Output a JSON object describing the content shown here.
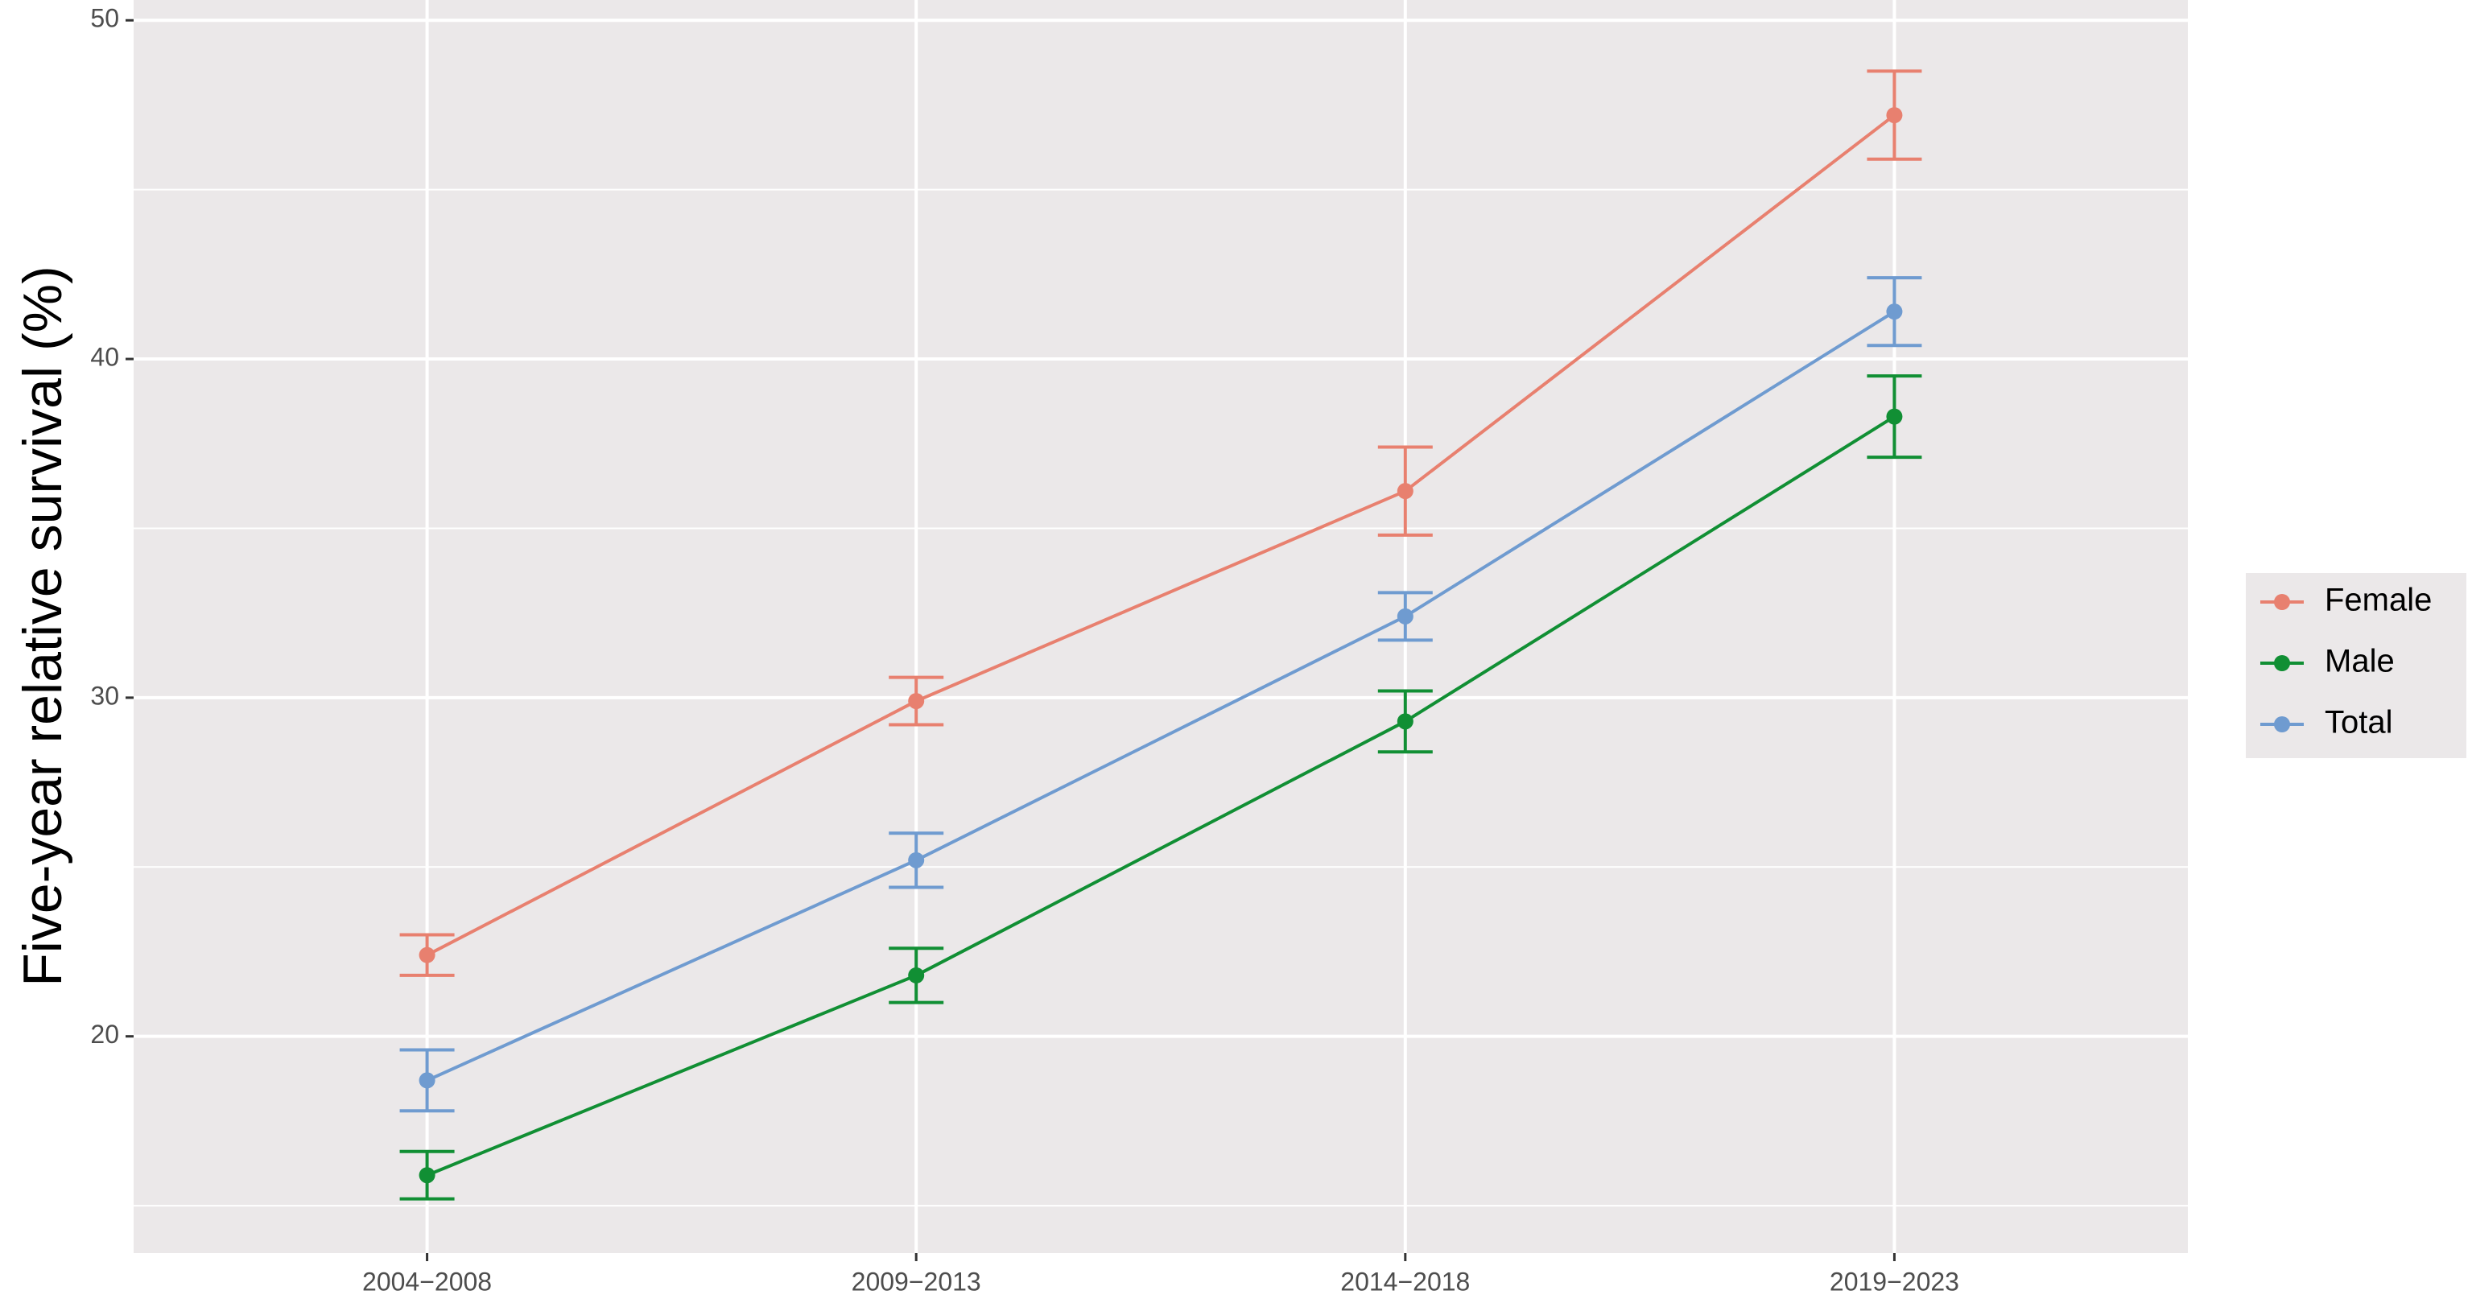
{
  "chart_data": {
    "type": "line",
    "ylabel": "Five-year relative survival (%)",
    "categories": [
      "2004−2008",
      "2009−2013",
      "2014−2018",
      "2019−2023"
    ],
    "series": [
      {
        "name": "Female",
        "color": "#e8806f",
        "values": [
          22.4,
          29.9,
          36.1,
          47.2
        ],
        "errors": [
          0.6,
          0.7,
          1.3,
          1.3
        ]
      },
      {
        "name": "Male",
        "color": "#118f34",
        "values": [
          15.9,
          21.8,
          29.3,
          38.3
        ],
        "errors": [
          0.7,
          0.8,
          0.9,
          1.2
        ]
      },
      {
        "name": "Total",
        "color": "#6f9bd0",
        "values": [
          18.7,
          25.2,
          32.4,
          41.4
        ],
        "errors": [
          0.9,
          0.8,
          0.7,
          1.0
        ]
      }
    ],
    "ylim": [
      13.6,
      50.6
    ],
    "yticks": [
      20,
      30,
      40,
      50
    ],
    "grid": true,
    "legend": "right"
  }
}
